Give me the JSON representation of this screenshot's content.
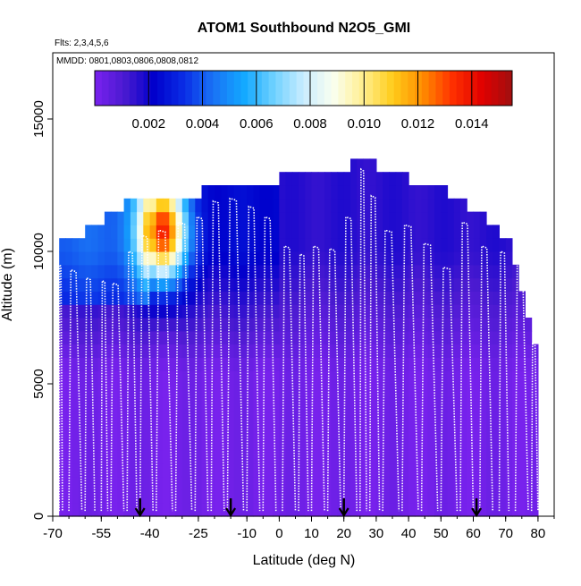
{
  "chart_data": {
    "type": "heatmap",
    "title": "ATOM1 Southbound N2O5_GMI",
    "flights_note": "Flts: 2,3,4,5,6",
    "dates_note": "MMDD: 0801,0803,0806,0808,0812",
    "xlabel": "Latitude (deg N)",
    "ylabel": "Altitude (m)",
    "xlim": [
      -70,
      85
    ],
    "ylim": [
      0,
      17500
    ],
    "x_ticks": [
      -70,
      -55,
      -40,
      -25,
      -10,
      0,
      10,
      20,
      30,
      40,
      50,
      60,
      70,
      80
    ],
    "x_tick_labels": [
      "-70",
      "-55",
      "-40",
      "-25",
      "-10",
      "0",
      "10",
      "20",
      "30",
      "40",
      "50",
      "60",
      "70",
      "80"
    ],
    "y_ticks": [
      0,
      5000,
      10000,
      15000
    ],
    "y_tick_labels": [
      "0",
      "5000",
      "10000",
      "15000"
    ],
    "colorbar": {
      "min": 0.0,
      "max": 0.0155,
      "ticks": [
        0.002,
        0.004,
        0.006,
        0.008,
        0.01,
        0.012,
        0.014
      ],
      "tick_labels": [
        "0.002",
        "0.004",
        "0.006",
        "0.008",
        "0.010",
        "0.012",
        "0.014"
      ],
      "colors": [
        "#7a22ee",
        "#4a1ad0",
        "#0000cc",
        "#0a2ee6",
        "#1a74f5",
        "#12a8ff",
        "#6ed1ff",
        "#c9ecff",
        "#fafff0",
        "#ffef90",
        "#ffcc1a",
        "#ff8c00",
        "#ff3000",
        "#e00000",
        "#a01010"
      ]
    },
    "surface_markers_lat": [
      -43,
      -15,
      20,
      61
    ],
    "altitude_envelope": [
      {
        "lat": -68,
        "top": 10500
      },
      {
        "lat": -60,
        "top": 10500
      },
      {
        "lat": -55,
        "top": 11000
      },
      {
        "lat": -45,
        "top": 11800
      },
      {
        "lat": -35,
        "top": 12000
      },
      {
        "lat": -25,
        "top": 12000
      },
      {
        "lat": -20,
        "top": 12300
      },
      {
        "lat": -10,
        "top": 12200
      },
      {
        "lat": 0,
        "top": 12500
      },
      {
        "lat": 5,
        "top": 12800
      },
      {
        "lat": 15,
        "top": 12800
      },
      {
        "lat": 20,
        "top": 12800
      },
      {
        "lat": 24,
        "top": 13400
      },
      {
        "lat": 28,
        "top": 13400
      },
      {
        "lat": 30,
        "top": 12800
      },
      {
        "lat": 40,
        "top": 12500
      },
      {
        "lat": 50,
        "top": 12200
      },
      {
        "lat": 58,
        "top": 11500
      },
      {
        "lat": 65,
        "top": 11000
      },
      {
        "lat": 72,
        "top": 10000
      },
      {
        "lat": 76,
        "top": 8000
      },
      {
        "lat": 80,
        "top": 6000
      }
    ],
    "hotspot": {
      "lat_range": [
        -44,
        -28
      ],
      "alt_range": [
        8000,
        12000
      ],
      "peak_value": 0.0145
    },
    "profiles": [
      {
        "lat0": -68,
        "lat1": -67,
        "top": 9500
      },
      {
        "lat0": -65,
        "lat1": -61,
        "top": 9300
      },
      {
        "lat0": -60,
        "lat1": -57,
        "top": 9000
      },
      {
        "lat0": -55,
        "lat1": -53,
        "top": 8900
      },
      {
        "lat0": -52,
        "lat1": -48,
        "top": 8800
      },
      {
        "lat0": -47,
        "lat1": -44,
        "top": 10000
      },
      {
        "lat0": -43,
        "lat1": -39,
        "top": 10600
      },
      {
        "lat0": -38,
        "lat1": -33,
        "top": 10800
      },
      {
        "lat0": -32,
        "lat1": -27,
        "top": 11100
      },
      {
        "lat0": -26,
        "lat1": -22,
        "top": 11300
      },
      {
        "lat0": -21,
        "lat1": -17,
        "top": 11900
      },
      {
        "lat0": -16,
        "lat1": -11,
        "top": 12000
      },
      {
        "lat0": -10,
        "lat1": -6,
        "top": 11700
      },
      {
        "lat0": -5,
        "lat1": -1,
        "top": 11300
      },
      {
        "lat0": 1,
        "lat1": 5,
        "top": 10200
      },
      {
        "lat0": 6,
        "lat1": 9,
        "top": 9900
      },
      {
        "lat0": 10,
        "lat1": 14,
        "top": 10200
      },
      {
        "lat0": 15,
        "lat1": 19,
        "top": 10100
      },
      {
        "lat0": 20,
        "lat1": 24,
        "top": 11300
      },
      {
        "lat0": 25,
        "lat1": 27,
        "top": 13100
      },
      {
        "lat0": 28,
        "lat1": 31,
        "top": 12100
      },
      {
        "lat0": 32,
        "lat1": 37,
        "top": 10800
      },
      {
        "lat0": 38,
        "lat1": 43,
        "top": 11000
      },
      {
        "lat0": 44,
        "lat1": 49,
        "top": 10300
      },
      {
        "lat0": 50,
        "lat1": 55,
        "top": 9400
      },
      {
        "lat0": 56,
        "lat1": 60,
        "top": 11100
      },
      {
        "lat0": 62,
        "lat1": 66,
        "top": 10200
      },
      {
        "lat0": 68,
        "lat1": 71,
        "top": 10000
      },
      {
        "lat0": 73,
        "lat1": 77,
        "top": 9700
      },
      {
        "lat0": 78,
        "lat1": 80,
        "top": 6500
      }
    ]
  }
}
